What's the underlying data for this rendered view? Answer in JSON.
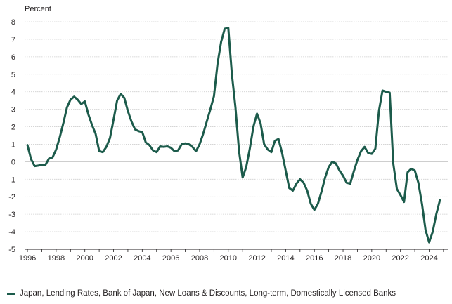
{
  "chart_data": {
    "type": "line",
    "ylabel": "Percent",
    "ylim": [
      -5,
      8
    ],
    "xlim": [
      1995.8,
      2025.3
    ],
    "yticks": [
      8,
      7,
      6,
      5,
      4,
      3,
      2,
      1,
      0,
      -1,
      -2,
      -3,
      -4,
      -5
    ],
    "xticks": [
      1996,
      1998,
      2000,
      2002,
      2004,
      2006,
      2008,
      2010,
      2012,
      2014,
      2016,
      2018,
      2020,
      2022,
      2024
    ],
    "grid": "horizontal",
    "legend_position": "bottom-left",
    "series": [
      {
        "name": "Japan, Lending Rates, Bank of Japan, New Loans & Discounts, Long-term, Domestically Licensed Banks",
        "color": "#1c5b4b",
        "x": [
          1996.0,
          1996.25,
          1996.5,
          1996.75,
          1997.0,
          1997.25,
          1997.5,
          1997.75,
          1998.0,
          1998.25,
          1998.5,
          1998.75,
          1999.0,
          1999.25,
          1999.5,
          1999.75,
          2000.0,
          2000.25,
          2000.5,
          2000.75,
          2001.0,
          2001.25,
          2001.5,
          2001.75,
          2002.0,
          2002.25,
          2002.5,
          2002.75,
          2003.0,
          2003.25,
          2003.5,
          2003.75,
          2004.0,
          2004.25,
          2004.5,
          2004.75,
          2005.0,
          2005.25,
          2005.5,
          2005.75,
          2006.0,
          2006.25,
          2006.5,
          2006.75,
          2007.0,
          2007.25,
          2007.5,
          2007.75,
          2008.0,
          2008.25,
          2008.5,
          2008.75,
          2009.0,
          2009.25,
          2009.5,
          2009.75,
          2010.0,
          2010.25,
          2010.5,
          2010.75,
          2011.0,
          2011.25,
          2011.5,
          2011.75,
          2012.0,
          2012.25,
          2012.5,
          2012.75,
          2013.0,
          2013.25,
          2013.5,
          2013.75,
          2014.0,
          2014.25,
          2014.5,
          2014.75,
          2015.0,
          2015.25,
          2015.5,
          2015.75,
          2016.0,
          2016.25,
          2016.5,
          2016.75,
          2017.0,
          2017.25,
          2017.5,
          2017.75,
          2018.0,
          2018.25,
          2018.5,
          2018.75,
          2019.0,
          2019.25,
          2019.5,
          2019.75,
          2020.0,
          2020.25,
          2020.5,
          2020.75,
          2021.0,
          2021.25,
          2021.5,
          2021.75,
          2022.0,
          2022.25,
          2022.5,
          2022.75,
          2023.0,
          2023.25,
          2023.5,
          2023.75,
          2024.0,
          2024.25,
          2024.5,
          2024.75
        ],
        "values": [
          0.95,
          0.15,
          -0.25,
          -0.22,
          -0.18,
          -0.18,
          0.18,
          0.25,
          0.7,
          1.4,
          2.2,
          3.1,
          3.55,
          3.72,
          3.55,
          3.3,
          3.45,
          2.7,
          2.1,
          1.6,
          0.6,
          0.55,
          0.85,
          1.35,
          2.4,
          3.5,
          3.88,
          3.65,
          2.9,
          2.3,
          1.85,
          1.75,
          1.7,
          1.1,
          0.95,
          0.65,
          0.55,
          0.88,
          0.85,
          0.88,
          0.8,
          0.6,
          0.65,
          1.0,
          1.05,
          1.0,
          0.85,
          0.6,
          1.0,
          1.6,
          2.3,
          3.0,
          3.75,
          5.6,
          6.85,
          7.6,
          7.65,
          5.0,
          3.1,
          0.6,
          -0.9,
          -0.3,
          0.75,
          2.0,
          2.75,
          2.2,
          1.0,
          0.7,
          0.55,
          1.2,
          1.3,
          0.5,
          -0.5,
          -1.5,
          -1.65,
          -1.25,
          -1.0,
          -1.2,
          -1.65,
          -2.4,
          -2.75,
          -2.4,
          -1.7,
          -0.9,
          -0.3,
          0.0,
          -0.1,
          -0.5,
          -0.8,
          -1.2,
          -1.25,
          -0.55,
          0.1,
          0.6,
          0.85,
          0.5,
          0.45,
          0.75,
          2.9,
          4.07,
          4.0,
          3.95,
          -0.1,
          -1.55,
          -1.9,
          -2.3,
          -0.6,
          -0.4,
          -0.5,
          -1.2,
          -2.4,
          -3.9,
          -4.6,
          -4.0,
          -3.0,
          -2.2
        ]
      }
    ]
  }
}
